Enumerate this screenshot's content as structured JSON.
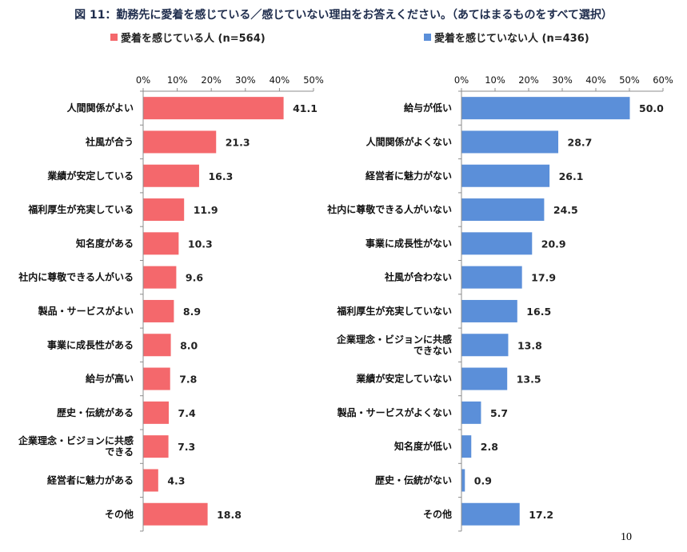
{
  "title": "図 11：勤務先に愛着を感じている／感じていない理由をお答えください。（あてはまるものをすべて選択）",
  "page_number": "10",
  "colors": {
    "left": "#f4686c",
    "right": "#5b8fd9"
  },
  "chart_data": [
    {
      "type": "bar",
      "orientation": "horizontal",
      "series": [
        {
          "name": "愛着を感じている人 (n=564)"
        }
      ],
      "categories": [
        "人間関係がよい",
        "社風が合う",
        "業績が安定している",
        "福利厚生が充実している",
        "知名度がある",
        "社内に尊敬できる人がいる",
        "製品・サービスがよい",
        "事業に成長性がある",
        "給与が高い",
        "歴史・伝統がある",
        "企業理念・ビジョンに共感できる",
        "経営者に魅力がある",
        "その他"
      ],
      "category_lines": [
        [
          "人間関係がよい"
        ],
        [
          "社風が合う"
        ],
        [
          "業績が安定している"
        ],
        [
          "福利厚生が充実している"
        ],
        [
          "知名度がある"
        ],
        [
          "社内に尊敬できる人がいる"
        ],
        [
          "製品・サービスがよい"
        ],
        [
          "事業に成長性がある"
        ],
        [
          "給与が高い"
        ],
        [
          "歴史・伝統がある"
        ],
        [
          "企業理念・ビジョンに共感",
          "できる"
        ],
        [
          "経営者に魅力がある"
        ],
        [
          "その他"
        ]
      ],
      "values": [
        41.1,
        21.3,
        16.3,
        11.9,
        10.3,
        9.6,
        8.9,
        8.0,
        7.8,
        7.4,
        7.3,
        4.3,
        18.8
      ],
      "value_labels": [
        "41.1",
        "21.3",
        "16.3",
        "11.9",
        "10.3",
        "9.6",
        "8.9",
        "8.0",
        "7.8",
        "7.4",
        "7.3",
        "4.3",
        "18.8"
      ],
      "xlim": [
        0,
        50
      ],
      "xticks": [
        0,
        10,
        20,
        30,
        40,
        50
      ],
      "xtick_labels": [
        "0%",
        "10%",
        "20%",
        "30%",
        "40%",
        "50%"
      ],
      "axis_position": "top"
    },
    {
      "type": "bar",
      "orientation": "horizontal",
      "series": [
        {
          "name": "愛着を感じていない人 (n=436)"
        }
      ],
      "categories": [
        "給与が低い",
        "人間関係がよくない",
        "経営者に魅力がない",
        "社内に尊敬できる人がいない",
        "事業に成長性がない",
        "社風が合わない",
        "福利厚生が充実していない",
        "企業理念・ビジョンに共感できない",
        "業績が安定していない",
        "製品・サービスがよくない",
        "知名度が低い",
        "歴史・伝統がない",
        "その他"
      ],
      "category_lines": [
        [
          "給与が低い"
        ],
        [
          "人間関係がよくない"
        ],
        [
          "経営者に魅力がない"
        ],
        [
          "社内に尊敬できる人がいない"
        ],
        [
          "事業に成長性がない"
        ],
        [
          "社風が合わない"
        ],
        [
          "福利厚生が充実していない"
        ],
        [
          "企業理念・ビジョンに共感",
          "できない"
        ],
        [
          "業績が安定していない"
        ],
        [
          "製品・サービスがよくない"
        ],
        [
          "知名度が低い"
        ],
        [
          "歴史・伝統がない"
        ],
        [
          "その他"
        ]
      ],
      "values": [
        50.0,
        28.7,
        26.1,
        24.5,
        20.9,
        17.9,
        16.5,
        13.8,
        13.5,
        5.7,
        2.8,
        0.9,
        17.2
      ],
      "value_labels": [
        "50.0",
        "28.7",
        "26.1",
        "24.5",
        "20.9",
        "17.9",
        "16.5",
        "13.8",
        "13.5",
        "5.7",
        "2.8",
        "0.9",
        "17.2"
      ],
      "xlim": [
        0,
        60
      ],
      "xticks": [
        0,
        10,
        20,
        30,
        40,
        50,
        60
      ],
      "xtick_labels": [
        "0%",
        "10%",
        "20%",
        "30%",
        "40%",
        "50%",
        "60%"
      ],
      "axis_position": "top"
    }
  ]
}
